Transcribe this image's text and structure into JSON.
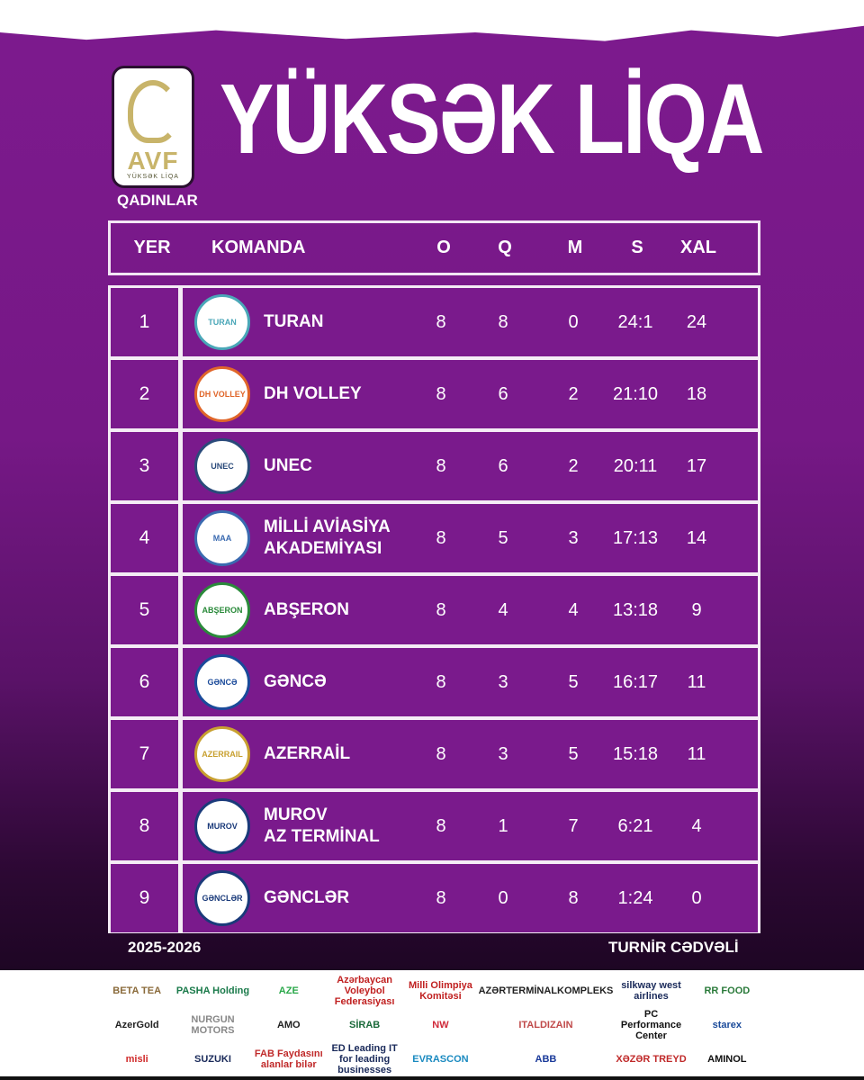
{
  "header": {
    "title": "YÜKSƏK LİQA",
    "logo_text": "AVF",
    "logo_sub": "YÜKSƏK LİQA",
    "category": "QADINLAR"
  },
  "columns": {
    "pos": "YER",
    "team": "KOMANDA",
    "o": "O",
    "q": "Q",
    "m": "M",
    "s": "S",
    "xal": "XAL"
  },
  "rows": [
    {
      "pos": "1",
      "team": "TURAN",
      "crest": "TURAN",
      "crest_color": "#4aa7b8",
      "o": "8",
      "q": "8",
      "m": "0",
      "s": "24:1",
      "xal": "24"
    },
    {
      "pos": "2",
      "team": "DH VOLLEY",
      "crest": "DH VOLLEY",
      "crest_color": "#e0662a",
      "o": "8",
      "q": "6",
      "m": "2",
      "s": "21:10",
      "xal": "18"
    },
    {
      "pos": "3",
      "team": "UNEC",
      "crest": "UNEC",
      "crest_color": "#2a4a7a",
      "o": "8",
      "q": "6",
      "m": "2",
      "s": "20:11",
      "xal": "17"
    },
    {
      "pos": "4",
      "team": "MİLLİ AVİASİYA\nAKADEMİYASI",
      "crest": "MAA",
      "crest_color": "#3a6ab0",
      "o": "8",
      "q": "5",
      "m": "3",
      "s": "17:13",
      "xal": "14"
    },
    {
      "pos": "5",
      "team": "ABŞERON",
      "crest": "ABŞERON",
      "crest_color": "#2a8a3a",
      "o": "8",
      "q": "4",
      "m": "4",
      "s": "13:18",
      "xal": "9"
    },
    {
      "pos": "6",
      "team": "GƏNCƏ",
      "crest": "GƏNCƏ",
      "crest_color": "#1a4a9a",
      "o": "8",
      "q": "3",
      "m": "5",
      "s": "16:17",
      "xal": "11"
    },
    {
      "pos": "7",
      "team": "AZERRAİL",
      "crest": "AZERRAIL",
      "crest_color": "#c8a030",
      "o": "8",
      "q": "3",
      "m": "5",
      "s": "15:18",
      "xal": "11"
    },
    {
      "pos": "8",
      "team": "MUROV\nAZ TERMİNAL",
      "crest": "MUROV",
      "crest_color": "#1a3a7a",
      "o": "8",
      "q": "1",
      "m": "7",
      "s": "6:21",
      "xal": "4"
    },
    {
      "pos": "9",
      "team": "GƏNCLƏR",
      "crest": "GƏNCLƏR",
      "crest_color": "#1a3a7a",
      "o": "8",
      "q": "0",
      "m": "8",
      "s": "1:24",
      "xal": "0"
    }
  ],
  "footer": {
    "season": "2025-2026",
    "label": "TURNİR CƏDVƏLİ"
  },
  "sponsors": [
    {
      "name": "BETA TEA",
      "color": "#8a6a3a"
    },
    {
      "name": "PASHA Holding",
      "color": "#1a7a4a"
    },
    {
      "name": "AZE",
      "color": "#2aa84a"
    },
    {
      "name": "Azərbaycan Voleybol Federasiyası",
      "color": "#c02020"
    },
    {
      "name": "Milli Olimpiya Komitəsi",
      "color": "#c02020"
    },
    {
      "name": "AZƏRTERMİNALKOMPLEKS",
      "color": "#222"
    },
    {
      "name": "silkway west airlines",
      "color": "#1a2a5a"
    },
    {
      "name": "RR FOOD",
      "color": "#2a7a3a"
    },
    {
      "name": "AzerGold",
      "color": "#222"
    },
    {
      "name": "NURGUN MOTORS",
      "color": "#888"
    },
    {
      "name": "AMO",
      "color": "#222"
    },
    {
      "name": "SİRAB",
      "color": "#1a6a3a"
    },
    {
      "name": "NW",
      "color": "#d02a3a"
    },
    {
      "name": "ITALDIZAIN",
      "color": "#c04a4a"
    },
    {
      "name": "PC Performance Center",
      "color": "#111"
    },
    {
      "name": "starex",
      "color": "#1a4a9a"
    },
    {
      "name": "misli",
      "color": "#d02a2a"
    },
    {
      "name": "SUZUKI",
      "color": "#1a2a5a"
    },
    {
      "name": "FAB Faydasını alanlar bilər",
      "color": "#c02a2a"
    },
    {
      "name": "ED Leading IT for leading businesses",
      "color": "#1a2a5a"
    },
    {
      "name": "EVRASCON",
      "color": "#1a8ac0"
    },
    {
      "name": "ABB",
      "color": "#1a3a9a"
    },
    {
      "name": "XƏZƏR TREYD",
      "color": "#c02a2a"
    },
    {
      "name": "AMINOL",
      "color": "#111"
    }
  ]
}
